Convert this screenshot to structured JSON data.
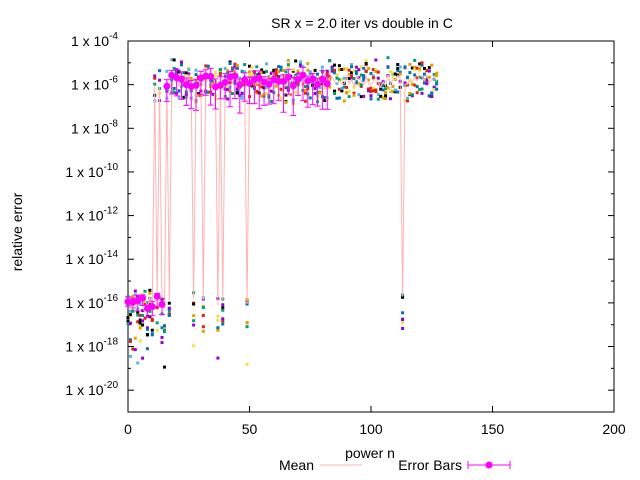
{
  "chart_data": {
    "type": "scatter",
    "title": "SR x = 2.0 iter vs double in C",
    "xlabel": "power n",
    "ylabel": "relative error",
    "xlim": [
      0,
      200
    ],
    "ylim": [
      1e-21,
      0.0001
    ],
    "y_scale": "log",
    "grid": false,
    "legend_position": "bottom",
    "x_ticks": [
      {
        "value": 0,
        "label": "0"
      },
      {
        "value": 50,
        "label": "50"
      },
      {
        "value": 100,
        "label": "100"
      },
      {
        "value": 150,
        "label": "150"
      },
      {
        "value": 200,
        "label": "200"
      }
    ],
    "y_ticks": [
      {
        "exp": -4,
        "base": "1 x 10",
        "sup": "-4"
      },
      {
        "exp": -6,
        "base": "1 x 10",
        "sup": "-6"
      },
      {
        "exp": -8,
        "base": "1 x 10",
        "sup": "-8"
      },
      {
        "exp": -10,
        "base": "1 x 10",
        "sup": "-10"
      },
      {
        "exp": -12,
        "base": "1 x 10",
        "sup": "-12"
      },
      {
        "exp": -14,
        "base": "1 x 10",
        "sup": "-14"
      },
      {
        "exp": -16,
        "base": "1 x 10",
        "sup": "-16"
      },
      {
        "exp": -18,
        "base": "1 x 10",
        "sup": "-18"
      },
      {
        "exp": -20,
        "base": "1 x 10",
        "sup": "-20"
      }
    ],
    "series": [
      {
        "name": "Mean",
        "color": "#ffb3b3",
        "style": "line"
      },
      {
        "name": "Error Bars",
        "color": "#ff00ff",
        "style": "errorbars"
      }
    ],
    "high_indices": [
      11,
      13,
      16,
      18,
      19,
      20,
      21,
      22,
      23,
      24,
      25,
      26,
      28,
      29,
      30,
      32,
      33,
      34,
      35,
      36,
      38,
      40,
      41,
      42,
      43,
      44,
      45,
      46,
      47,
      48,
      50,
      51,
      52,
      53,
      54,
      55,
      56,
      57,
      58,
      59,
      60,
      61,
      62,
      63,
      64,
      65,
      66,
      67,
      68,
      69,
      70,
      71,
      72,
      73,
      74,
      75,
      76,
      77,
      78,
      79,
      80,
      81,
      82,
      83,
      84,
      85,
      86,
      87,
      88,
      89,
      90,
      91,
      92,
      93,
      94,
      95,
      96,
      97,
      98,
      99,
      100,
      101,
      102,
      103,
      104,
      105,
      106,
      107,
      108,
      109,
      110,
      111,
      112,
      114,
      115,
      116,
      117,
      118,
      119,
      120,
      121,
      122,
      123,
      124,
      125,
      126,
      127
    ],
    "n_max": 127,
    "mean_low_level": 1e-16,
    "mean_high_level": 1.5e-06,
    "scatter_colors": [
      "#9400d3",
      "#009e73",
      "#56b4e9",
      "#e69f00",
      "#f0e442",
      "#0072b2",
      "#e51e10",
      "#000000"
    ],
    "seed": 7
  }
}
